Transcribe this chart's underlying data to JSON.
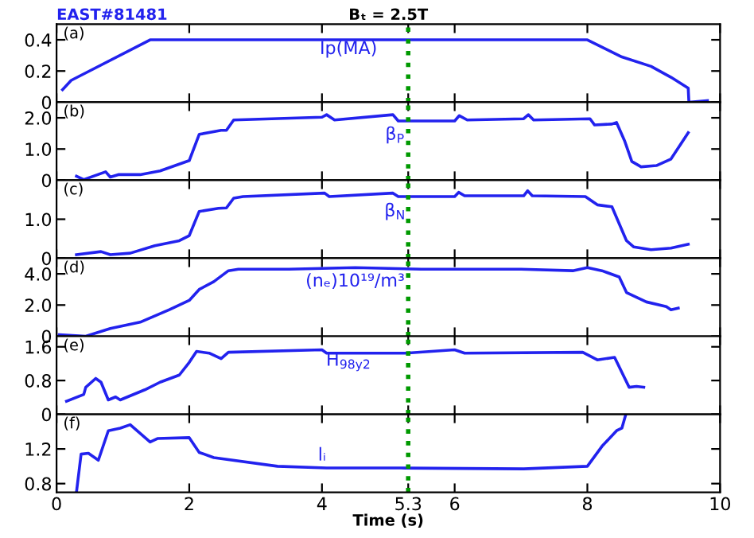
{
  "chart_data": [
    {
      "type": "line",
      "title": "EAST#81481",
      "subtitle": "Bₜ = 2.5T",
      "annotations": [
        "(a)"
      ],
      "xlim": [
        0,
        10
      ],
      "xticks": [
        0,
        2,
        4,
        5.3,
        6,
        8,
        10
      ],
      "ylim": [
        0,
        0.5
      ],
      "yticks": [
        0,
        0.2,
        0.4
      ],
      "tick_labels": "y",
      "ref_lines": [
        {
          "axis": "x",
          "value": 5.3,
          "color": "#009900",
          "line_style": "dotted"
        }
      ],
      "series": [
        {
          "name": "Ip(MA)",
          "color": "#2222ee",
          "x": [
            0.09,
            0.22,
            1.41,
            8.0,
            8.52,
            8.96,
            9.26,
            9.52,
            9.53,
            9.81
          ],
          "values": [
            0.08,
            0.14,
            0.4,
            0.4,
            0.29,
            0.23,
            0.16,
            0.09,
            0,
            0.01
          ]
        }
      ]
    },
    {
      "type": "line",
      "annotations": [
        "(b)"
      ],
      "xlim": [
        0,
        10
      ],
      "xticks": [
        0,
        2,
        4,
        5.3,
        6,
        8,
        10
      ],
      "ylim": [
        0,
        2.5
      ],
      "yticks": [
        0,
        {
          "value": 1,
          "label": "1.0"
        },
        {
          "value": 2,
          "label": "2.0"
        }
      ],
      "tick_labels": "y",
      "ref_lines": [
        {
          "axis": "x",
          "value": 5.3,
          "color": "#009900",
          "line_style": "dotted"
        }
      ],
      "series": [
        {
          "name": "β$_{P}$",
          "color": "#2222ee",
          "x": [
            0.3,
            0.41,
            0.74,
            0.81,
            0.93,
            1.26,
            1.56,
            2.0,
            2.15,
            2.48,
            2.56,
            2.67,
            4.0,
            4.07,
            4.19,
            5.07,
            5.15,
            6.0,
            6.07,
            6.19,
            7.04,
            7.11,
            7.19,
            8.04,
            8.11,
            8.37,
            8.44,
            8.56,
            8.67,
            8.81,
            9.04,
            9.26,
            9.52
          ],
          "values": [
            0.13,
            0.02,
            0.27,
            0.1,
            0.18,
            0.18,
            0.3,
            0.63,
            1.47,
            1.6,
            1.6,
            1.93,
            2.02,
            2.1,
            1.93,
            2.1,
            1.9,
            1.9,
            2.07,
            1.93,
            1.97,
            2.1,
            1.93,
            1.97,
            1.77,
            1.8,
            1.85,
            1.27,
            0.6,
            0.43,
            0.47,
            0.68,
            1.52
          ]
        }
      ]
    },
    {
      "type": "line",
      "annotations": [
        "(c)"
      ],
      "xlim": [
        0,
        10
      ],
      "xticks": [
        0,
        2,
        4,
        5.3,
        6,
        8,
        10
      ],
      "ylim": [
        0,
        2.0
      ],
      "yticks": [
        0,
        {
          "value": 1,
          "label": "1.0"
        }
      ],
      "tick_labels": "y",
      "ref_lines": [
        {
          "axis": "x",
          "value": 5.3,
          "color": "#009900",
          "line_style": "dotted"
        }
      ],
      "series": [
        {
          "name": "β$_{N}$",
          "color": "#2222ee",
          "x": [
            0.3,
            0.67,
            0.81,
            1.11,
            1.48,
            1.85,
            2.0,
            2.15,
            2.44,
            2.56,
            2.67,
            2.81,
            4.04,
            4.11,
            5.07,
            5.15,
            6.0,
            6.06,
            6.15,
            7.04,
            7.1,
            7.17,
            7.97,
            8.15,
            8.37,
            8.59,
            8.7,
            8.96,
            9.26,
            9.52
          ],
          "values": [
            0.09,
            0.17,
            0.09,
            0.13,
            0.32,
            0.45,
            0.58,
            1.2,
            1.28,
            1.29,
            1.54,
            1.58,
            1.67,
            1.58,
            1.67,
            1.58,
            1.58,
            1.69,
            1.6,
            1.6,
            1.73,
            1.6,
            1.58,
            1.37,
            1.32,
            0.45,
            0.29,
            0.22,
            0.26,
            0.36
          ]
        }
      ]
    },
    {
      "type": "line",
      "annotations": [
        "(d)"
      ],
      "xlim": [
        0,
        10
      ],
      "xticks": [
        0,
        2,
        4,
        5.3,
        6,
        8,
        10
      ],
      "ylim": [
        0,
        5
      ],
      "yticks": [
        0,
        {
          "value": 2,
          "label": "2.0"
        },
        {
          "value": 4,
          "label": "4.0"
        }
      ],
      "tick_labels": "y",
      "ref_lines": [
        {
          "axis": "x",
          "value": 5.3,
          "color": "#009900",
          "line_style": "dotted"
        }
      ],
      "series": [
        {
          "name": "(nₑ)10¹⁹/m³",
          "color": "#2222ee",
          "x": [
            0.04,
            0.44,
            0.81,
            1.26,
            1.7,
            2.0,
            2.15,
            2.37,
            2.59,
            2.74,
            3.5,
            4.5,
            5.5,
            6.5,
            7.0,
            7.78,
            8.0,
            8.22,
            8.48,
            8.59,
            8.89,
            9.19,
            9.26,
            9.37
          ],
          "values": [
            0.1,
            0.0,
            0.5,
            0.9,
            1.7,
            2.3,
            3.0,
            3.5,
            4.2,
            4.3,
            4.3,
            4.4,
            4.3,
            4.3,
            4.3,
            4.2,
            4.4,
            4.2,
            3.8,
            2.8,
            2.2,
            1.9,
            1.7,
            1.8
          ]
        }
      ]
    },
    {
      "type": "line",
      "annotations": [
        "(e)"
      ],
      "xlim": [
        0,
        10
      ],
      "xticks": [
        0,
        2,
        4,
        5.3,
        6,
        8,
        10
      ],
      "ylim": [
        0,
        1.85
      ],
      "yticks": [
        0,
        0.8,
        1.6
      ],
      "tick_labels": "y",
      "ref_lines": [
        {
          "axis": "x",
          "value": 5.3,
          "color": "#009900",
          "line_style": "dotted"
        }
      ],
      "series": [
        {
          "name": "H$_{98y2}$",
          "color": "#2222ee",
          "x": [
            0.15,
            0.41,
            0.44,
            0.59,
            0.67,
            0.78,
            0.89,
            0.96,
            1.33,
            1.56,
            1.85,
            2.0,
            2.11,
            2.3,
            2.48,
            2.59,
            4.0,
            4.07,
            5.26,
            6.0,
            6.15,
            7.93,
            8.15,
            8.41,
            8.63,
            8.74,
            8.85
          ],
          "values": [
            0.31,
            0.47,
            0.64,
            0.85,
            0.76,
            0.34,
            0.41,
            0.34,
            0.58,
            0.76,
            0.93,
            1.23,
            1.49,
            1.45,
            1.32,
            1.47,
            1.53,
            1.45,
            1.45,
            1.53,
            1.45,
            1.47,
            1.29,
            1.35,
            0.64,
            0.66,
            0.64
          ]
        }
      ]
    },
    {
      "type": "line",
      "xlabel": "Time (s)",
      "annotations": [
        "(f)"
      ],
      "xlim": [
        0,
        10
      ],
      "xticks": [
        0,
        2,
        4,
        5.3,
        6,
        8,
        10
      ],
      "ylim": [
        0.7,
        1.6
      ],
      "yticks": [
        0.8,
        1.2
      ],
      "ref_lines": [
        {
          "axis": "x",
          "value": 5.3,
          "color": "#009900",
          "line_style": "dotted"
        }
      ],
      "series": [
        {
          "name": "lᵢ",
          "color": "#2222ee",
          "x": [
            0.3,
            0.37,
            0.48,
            0.63,
            0.78,
            0.96,
            1.11,
            1.41,
            1.52,
            2.0,
            2.15,
            2.37,
            3.33,
            4.07,
            5.19,
            7.04,
            8.0,
            8.22,
            8.44,
            8.52,
            8.58
          ],
          "values": [
            0.7,
            1.14,
            1.15,
            1.07,
            1.41,
            1.44,
            1.48,
            1.28,
            1.32,
            1.33,
            1.16,
            1.1,
            1.0,
            0.98,
            0.98,
            0.97,
            1.0,
            1.23,
            1.41,
            1.44,
            1.6
          ]
        }
      ]
    }
  ]
}
